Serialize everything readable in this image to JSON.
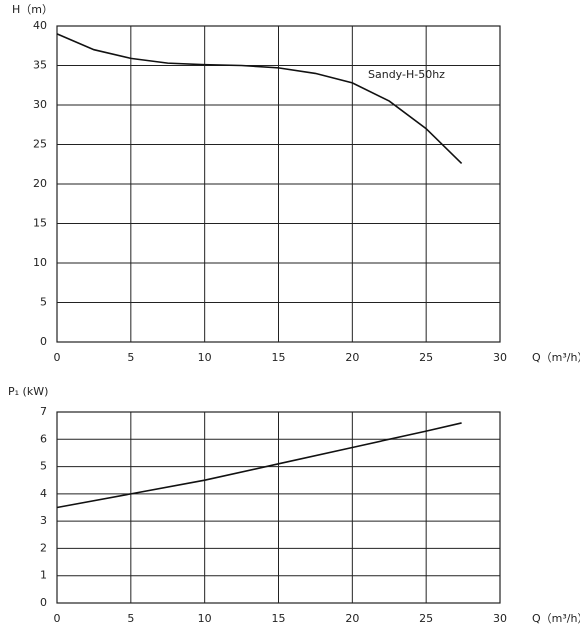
{
  "chart_data": [
    {
      "type": "line",
      "y_label": "H（m）",
      "x_label": "Q（m³/h）",
      "annotation": "Sandy-H-50hz",
      "x": [
        0,
        2.5,
        5,
        7.5,
        10,
        12.5,
        15,
        17.5,
        20,
        22.5,
        25,
        27.4
      ],
      "series": [
        {
          "color": "#111111",
          "values": [
            39,
            37,
            35.9,
            35.3,
            35.1,
            35.0,
            34.7,
            34.0,
            32.8,
            30.5,
            27,
            22.6
          ]
        }
      ],
      "xlim": [
        0,
        30
      ],
      "xticks": [
        0,
        5,
        10,
        15,
        20,
        25,
        30
      ],
      "ylim": [
        0,
        40
      ],
      "yticks": [
        0,
        5,
        10,
        15,
        20,
        25,
        30,
        35,
        40
      ],
      "grid": true
    },
    {
      "type": "line",
      "y_label": "P₁ (kW)",
      "x_label": "Q（m³/h）",
      "x": [
        0,
        5,
        10,
        15,
        20,
        25,
        27.4
      ],
      "series": [
        {
          "color": "#111111",
          "values": [
            3.5,
            4.0,
            4.5,
            5.1,
            5.7,
            6.3,
            6.6
          ]
        }
      ],
      "xlim": [
        0,
        30
      ],
      "xticks": [
        0,
        5,
        10,
        15,
        20,
        25,
        30
      ],
      "ylim": [
        0,
        7
      ],
      "yticks": [
        0,
        1,
        2,
        3,
        4,
        5,
        6,
        7
      ],
      "grid": true
    }
  ]
}
